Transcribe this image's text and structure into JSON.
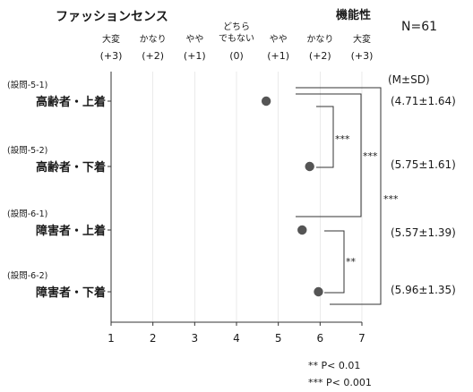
{
  "chart_data": {
    "type": "scatter",
    "left_header": "ファッションセンス",
    "right_header": "機能性",
    "n_label": "N=61",
    "scale_labels": [
      {
        "x": 1,
        "word": "大変",
        "num": "(+3)"
      },
      {
        "x": 2,
        "word": "かなり",
        "num": "(+2)"
      },
      {
        "x": 3,
        "word": "やや",
        "num": "(+1)"
      },
      {
        "x": 4,
        "word": "どちら\nでもない",
        "num": "(0)"
      },
      {
        "x": 5,
        "word": "やや",
        "num": "(+1)"
      },
      {
        "x": 6,
        "word": "かなり",
        "num": "(+2)"
      },
      {
        "x": 7,
        "word": "大変",
        "num": "(+3)"
      }
    ],
    "stats_header": "(M±SD)",
    "categories": [
      {
        "question": "(設問-5-1)",
        "label": "高齢者・上着",
        "mean": 4.71,
        "stats": "(4.71±1.64)"
      },
      {
        "question": "(設問-5-2)",
        "label": "高齢者・下着",
        "mean": 5.75,
        "stats": "(5.75±1.61)"
      },
      {
        "question": "(設問-6-1)",
        "label": "障害者・上着",
        "mean": 5.57,
        "stats": "(5.57±1.39)"
      },
      {
        "question": "(設問-6-2)",
        "label": "障害者・下着",
        "mean": 5.96,
        "stats": "(5.96±1.35)"
      }
    ],
    "x_ticks": [
      1,
      2,
      3,
      4,
      5,
      6,
      7
    ],
    "xlim": [
      1,
      7
    ],
    "significance": [
      {
        "between": [
          0,
          1
        ],
        "mark": "***"
      },
      {
        "between": [
          2,
          3
        ],
        "mark": "**"
      },
      {
        "between": [
          0,
          2
        ],
        "mark": "***"
      },
      {
        "between": [
          0,
          3
        ],
        "mark": "***"
      }
    ],
    "legend_notes": [
      "** P< 0.01",
      "*** P< 0.001"
    ],
    "colors": {
      "dot": "#555555",
      "line": "#333333",
      "grid": "#dddddd"
    }
  }
}
